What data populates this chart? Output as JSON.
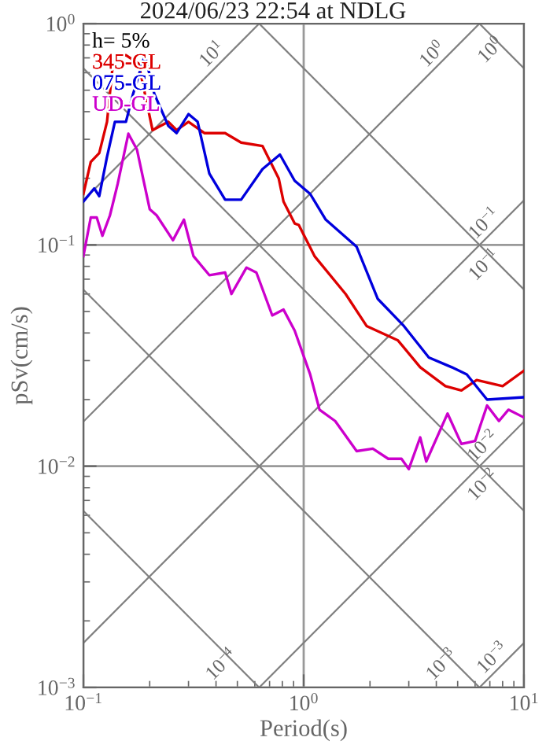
{
  "chart_data": {
    "type": "line",
    "title": "2024/06/23 22:54 at NDLG",
    "xlabel": "Period(s)",
    "ylabel": "pSv(cm/s)",
    "legend_title": "h= 5%",
    "legend": "top left",
    "log": "xy",
    "grid": true,
    "xlim": [
      0.1,
      10
    ],
    "ylim": [
      0.001,
      1
    ],
    "xticks": [
      {
        "value": 0.1,
        "label": "10$^{−1}$"
      },
      {
        "value": 1,
        "label": "10$^{0}$"
      },
      {
        "value": 10,
        "label": "10$^{1}$"
      }
    ],
    "yticks": [
      {
        "value": 0.001,
        "label": "10$^{−3}$"
      },
      {
        "value": 0.01,
        "label": "10$^{−2}$"
      },
      {
        "value": 0.1,
        "label": "10$^{−1}$"
      },
      {
        "value": 1,
        "label": "10$^{0}$"
      }
    ],
    "series": [
      {
        "color": "#808080",
        "x": [
          0.1,
          0.628
        ],
        "values": [
          0.159,
          1
        ]
      },
      {
        "color": "#808080",
        "x": [
          0.1,
          6.28
        ],
        "values": [
          0.0159,
          1
        ]
      },
      {
        "color": "#808080",
        "x": [
          0.1,
          10
        ],
        "values": [
          0.00159,
          0.159
        ]
      },
      {
        "color": "#808080",
        "x": [
          0.628,
          10
        ],
        "values": [
          0.001,
          0.0159
        ]
      },
      {
        "color": "#808080",
        "x": [
          6.28,
          10
        ],
        "values": [
          0.001,
          0.00159
        ]
      },
      {
        "color": "#808080",
        "x": [
          6.28,
          10
        ],
        "values": [
          1,
          0.628
        ]
      },
      {
        "color": "#808080",
        "x": [
          0.628,
          10
        ],
        "values": [
          1,
          0.0628
        ]
      },
      {
        "color": "#808080",
        "x": [
          0.1,
          10
        ],
        "values": [
          0.628,
          0.00628
        ]
      },
      {
        "color": "#808080",
        "x": [
          0.1,
          6.28
        ],
        "values": [
          0.0628,
          0.001
        ]
      },
      {
        "color": "#808080",
        "x": [
          0.1,
          0.628
        ],
        "values": [
          0.00628,
          0.001
        ]
      },
      {
        "name": "345-GL",
        "color": "#dd0000",
        "x": [
          0.1,
          0.108,
          0.118,
          0.128,
          0.137,
          0.156,
          0.178,
          0.206,
          0.243,
          0.265,
          0.3,
          0.354,
          0.44,
          0.52,
          0.65,
          0.77,
          0.81,
          0.91,
          0.95,
          1.12,
          1.55,
          1.93,
          2.68,
          3.38,
          4.4,
          5.2,
          6.1,
          8.0,
          10
        ],
        "values": [
          0.17,
          0.237,
          0.26,
          0.36,
          0.7,
          0.72,
          0.66,
          0.33,
          0.36,
          0.33,
          0.36,
          0.32,
          0.32,
          0.29,
          0.28,
          0.2,
          0.157,
          0.125,
          0.123,
          0.089,
          0.06,
          0.043,
          0.037,
          0.028,
          0.023,
          0.022,
          0.0245,
          0.023,
          0.027
        ]
      },
      {
        "name": "075-GL",
        "color": "#0000dd",
        "x": [
          0.1,
          0.112,
          0.118,
          0.128,
          0.139,
          0.156,
          0.168,
          0.19,
          0.21,
          0.243,
          0.265,
          0.3,
          0.33,
          0.373,
          0.44,
          0.52,
          0.65,
          0.78,
          0.91,
          1.07,
          1.26,
          1.74,
          2.17,
          2.85,
          3.7,
          4.7,
          5.5,
          6.8,
          10
        ],
        "values": [
          0.157,
          0.18,
          0.166,
          0.25,
          0.36,
          0.36,
          0.48,
          0.72,
          0.48,
          0.345,
          0.32,
          0.39,
          0.36,
          0.21,
          0.16,
          0.16,
          0.22,
          0.256,
          0.195,
          0.17,
          0.13,
          0.098,
          0.057,
          0.043,
          0.031,
          0.028,
          0.026,
          0.02,
          0.0205
        ]
      },
      {
        "name": "UD-GL",
        "color": "#cc00cc",
        "x": [
          0.1,
          0.108,
          0.115,
          0.122,
          0.132,
          0.143,
          0.16,
          0.175,
          0.2,
          0.215,
          0.255,
          0.286,
          0.316,
          0.373,
          0.44,
          0.47,
          0.55,
          0.61,
          0.72,
          0.81,
          0.91,
          1.07,
          1.18,
          1.39,
          1.74,
          2.06,
          2.42,
          2.78,
          3.0,
          3.38,
          3.6,
          4.5,
          5.2,
          6.0,
          6.8,
          7.7,
          8.5,
          10
        ],
        "values": [
          0.089,
          0.133,
          0.133,
          0.11,
          0.136,
          0.188,
          0.318,
          0.27,
          0.145,
          0.136,
          0.105,
          0.13,
          0.089,
          0.073,
          0.075,
          0.06,
          0.079,
          0.075,
          0.048,
          0.051,
          0.041,
          0.026,
          0.018,
          0.016,
          0.0117,
          0.012,
          0.0108,
          0.0108,
          0.0097,
          0.0135,
          0.0105,
          0.0173,
          0.0126,
          0.013,
          0.0188,
          0.016,
          0.018,
          0.0166
        ]
      }
    ],
    "annotations": [
      {
        "text": "10$^{1}$",
        "x": 0.454,
        "y": 0.722
      },
      {
        "text": "10$^{0}$",
        "x": 4.54,
        "y": 0.722
      },
      {
        "text": "10$^{0}$",
        "x": 8.34,
        "y": 0.753
      },
      {
        "text": "10$^{−1}$",
        "x": 7.8,
        "y": 0.124
      },
      {
        "text": "10$^{−1}$",
        "x": 7.8,
        "y": 0.0805
      },
      {
        "text": "10$^{−2}$",
        "x": 7.7,
        "y": 0.01224
      },
      {
        "text": "10$^{−2}$",
        "x": 7.7,
        "y": 0.00816
      },
      {
        "text": "10$^{−4}$",
        "x": 0.5,
        "y": 0.00126
      },
      {
        "text": "10$^{−3}$",
        "x": 5.0,
        "y": 0.00126
      },
      {
        "text": "10$^{−3}$",
        "x": 8.5,
        "y": 0.00135
      }
    ]
  }
}
